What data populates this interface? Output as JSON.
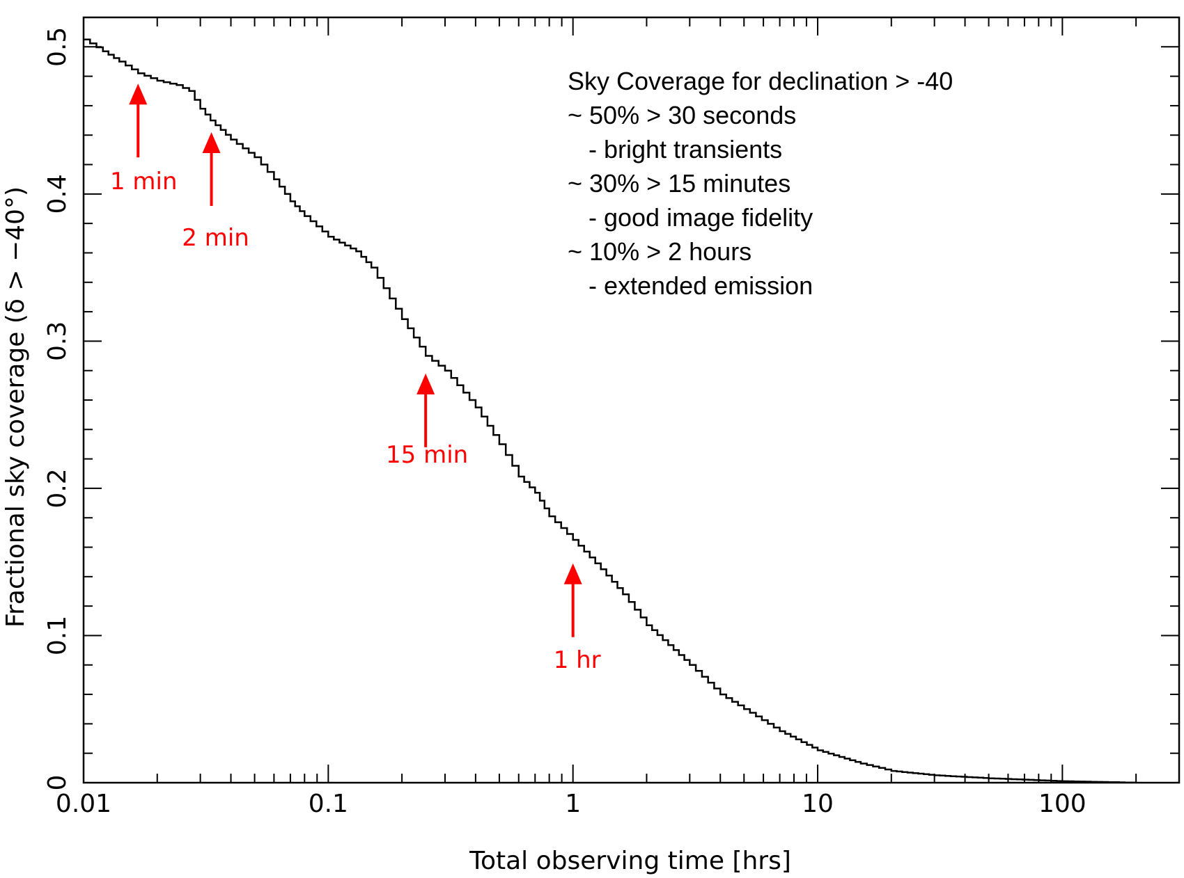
{
  "chart_data": {
    "type": "line",
    "title": "",
    "xlabel": "Total observing time [hrs]",
    "ylabel": "Fractional sky coverage (δ > −40°)",
    "xscale": "log",
    "xlim": [
      0.01,
      300
    ],
    "ylim": [
      0,
      0.52
    ],
    "xticks": [
      {
        "value": 0.01,
        "label": "0.01"
      },
      {
        "value": 0.1,
        "label": "0.1"
      },
      {
        "value": 1,
        "label": "1"
      },
      {
        "value": 10,
        "label": "10"
      },
      {
        "value": 100,
        "label": "100"
      }
    ],
    "yticks": [
      {
        "value": 0,
        "label": "0"
      },
      {
        "value": 0.1,
        "label": "0.1"
      },
      {
        "value": 0.2,
        "label": "0.2"
      },
      {
        "value": 0.3,
        "label": "0.3"
      },
      {
        "value": 0.4,
        "label": "0.4"
      },
      {
        "value": 0.5,
        "label": "0.5"
      }
    ],
    "series": [
      {
        "name": "Sky coverage",
        "color": "#000000",
        "x": [
          0.01,
          0.012,
          0.014,
          0.0167,
          0.02,
          0.024,
          0.027,
          0.03,
          0.033,
          0.04,
          0.05,
          0.06,
          0.07,
          0.08,
          0.1,
          0.13,
          0.15,
          0.2,
          0.25,
          0.3,
          0.4,
          0.5,
          0.6,
          0.7,
          0.8,
          1.0,
          1.3,
          1.6,
          2.0,
          3.0,
          4.0,
          5.0,
          7.0,
          10,
          15,
          20,
          30,
          50,
          100,
          200
        ],
        "y": [
          0.505,
          0.497,
          0.49,
          0.482,
          0.477,
          0.474,
          0.47,
          0.458,
          0.45,
          0.437,
          0.425,
          0.41,
          0.395,
          0.385,
          0.371,
          0.361,
          0.35,
          0.315,
          0.29,
          0.28,
          0.255,
          0.23,
          0.208,
          0.197,
          0.181,
          0.165,
          0.145,
          0.128,
          0.107,
          0.08,
          0.06,
          0.05,
          0.035,
          0.022,
          0.013,
          0.008,
          0.005,
          0.003,
          0.001,
          0.0
        ]
      }
    ],
    "annotations": [
      {
        "label": "1 min",
        "x": 0.0167,
        "y": 0.475,
        "color": "#ff0000"
      },
      {
        "label": "2 min",
        "x": 0.0333,
        "y": 0.442,
        "color": "#ff0000"
      },
      {
        "label": "15 min",
        "x": 0.25,
        "y": 0.278,
        "color": "#ff0000"
      },
      {
        "label": "1 hr",
        "x": 1.0,
        "y": 0.149,
        "color": "#ff0000"
      }
    ],
    "textbox": [
      "Sky Coverage for declination > -40",
      "~ 50% > 30 seconds",
      "- bright transients",
      "~ 30% > 15 minutes",
      "- good image fidelity",
      "~ 10% > 2 hours",
      "- extended emission"
    ],
    "legend": "none",
    "grid": false
  }
}
